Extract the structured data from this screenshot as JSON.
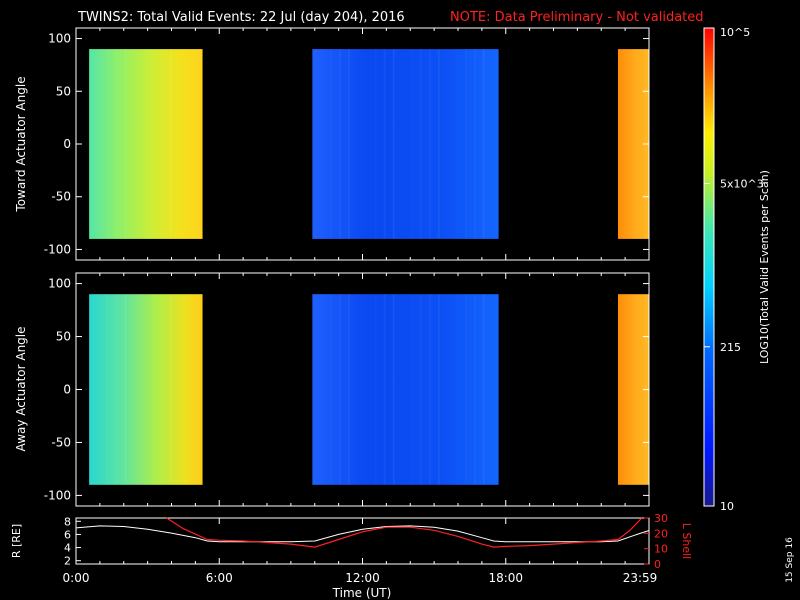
{
  "title": "TWINS2: Total Valid Events: 22 Jul (day 204), 2016",
  "warning": "NOTE: Data Preliminary - Not validated",
  "datestamp": "15 Sep 16",
  "colors": {
    "background": "#000000",
    "axes": "#ffffff",
    "warning": "#ff2020",
    "lshell": "#ff2020"
  },
  "chart_data": [
    {
      "type": "heatmap",
      "ylabel": "Toward Actuator Angle",
      "ylim": [
        -110,
        110
      ],
      "yticks": [
        "100",
        "50",
        "0",
        "-50",
        "-100"
      ],
      "xlim_hours": [
        0,
        24
      ],
      "data_angle_range": [
        -90,
        90
      ],
      "data_blocks_hours": [
        {
          "start": 0.55,
          "end": 5.3,
          "level": "green-to-yellow"
        },
        {
          "start": 9.9,
          "end": 17.7,
          "level": "blue"
        },
        {
          "start": 22.7,
          "end": 24.0,
          "level": "orange"
        }
      ]
    },
    {
      "type": "heatmap",
      "ylabel": "Away Actuator Angle",
      "ylim": [
        -110,
        110
      ],
      "yticks": [
        "100",
        "50",
        "0",
        "-50",
        "-100"
      ],
      "xlim_hours": [
        0,
        24
      ],
      "data_angle_range": [
        -90,
        90
      ],
      "data_blocks_hours": [
        {
          "start": 0.55,
          "end": 5.3,
          "level": "cyan-to-yellow"
        },
        {
          "start": 9.9,
          "end": 17.7,
          "level": "blue"
        },
        {
          "start": 22.7,
          "end": 24.0,
          "level": "orange"
        }
      ]
    },
    {
      "type": "line",
      "ylabel_left": "R [RE]",
      "ylabel_right": "L Shell",
      "left_ticks": [
        "8",
        "6",
        "4",
        "2"
      ],
      "right_ticks": [
        "30",
        "20",
        "10",
        "0"
      ],
      "left_ylim": [
        1.5,
        8.5
      ],
      "right_ylim": [
        0,
        30
      ],
      "xlabel": "Time (UT)",
      "xtick_labels": [
        "0:00",
        "6:00",
        "12:00",
        "18:00",
        "23:59"
      ],
      "xticks_hours": [
        0,
        6,
        12,
        18,
        24
      ],
      "series": [
        {
          "name": "R [RE]",
          "axis": "left",
          "color": "#ffffff",
          "x": [
            0,
            1,
            2,
            3,
            4,
            5,
            5.5,
            6,
            7,
            8,
            9,
            10,
            11,
            12,
            13,
            14,
            15,
            16,
            17,
            17.5,
            18,
            19,
            20,
            21,
            22,
            22.7,
            23.5,
            24
          ],
          "y": [
            7.0,
            7.3,
            7.2,
            6.8,
            6.2,
            5.5,
            5.0,
            4.9,
            4.9,
            4.9,
            4.9,
            5.0,
            6.0,
            6.8,
            7.2,
            7.3,
            7.1,
            6.5,
            5.5,
            5.0,
            4.9,
            4.9,
            4.9,
            4.9,
            4.9,
            5.0,
            6.0,
            6.6
          ]
        },
        {
          "name": "L Shell",
          "axis": "right",
          "color": "#ff2020",
          "x": [
            3.8,
            4.5,
            5.5,
            6,
            7,
            8,
            9,
            10,
            11,
            12,
            13,
            14,
            15,
            16,
            17,
            17.5,
            18,
            19,
            20,
            21,
            22,
            22.7,
            23.2,
            23.7
          ],
          "y": [
            30,
            23,
            16,
            15.5,
            15,
            14,
            13,
            11,
            16,
            21,
            24,
            24,
            22,
            18,
            13,
            11,
            11.5,
            12,
            13,
            14,
            15,
            16,
            22,
            30
          ]
        }
      ]
    }
  ],
  "colorbar": {
    "label": "LOG10(Total Valid Events per Scan)",
    "ticks": [
      {
        "label": "10^5",
        "value": 100000
      },
      {
        "label": "5x10^3",
        "value": 5000
      },
      {
        "label": "215",
        "value": 215
      },
      {
        "label": "10",
        "value": 10
      }
    ],
    "range": [
      10,
      100000
    ]
  }
}
